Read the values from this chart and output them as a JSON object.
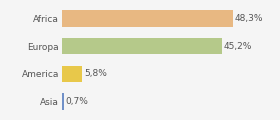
{
  "categories": [
    "Africa",
    "Europa",
    "America",
    "Asia"
  ],
  "values": [
    48.3,
    45.2,
    5.8,
    0.7
  ],
  "labels": [
    "48,3%",
    "45,2%",
    "5,8%",
    "0,7%"
  ],
  "bar_colors": [
    "#e8b882",
    "#b5c98a",
    "#e8c84a",
    "#7090c8"
  ],
  "background_color": "#f5f5f5",
  "xlim": [
    0,
    60
  ],
  "label_fontsize": 6.5,
  "tick_fontsize": 6.5,
  "bar_height": 0.6
}
